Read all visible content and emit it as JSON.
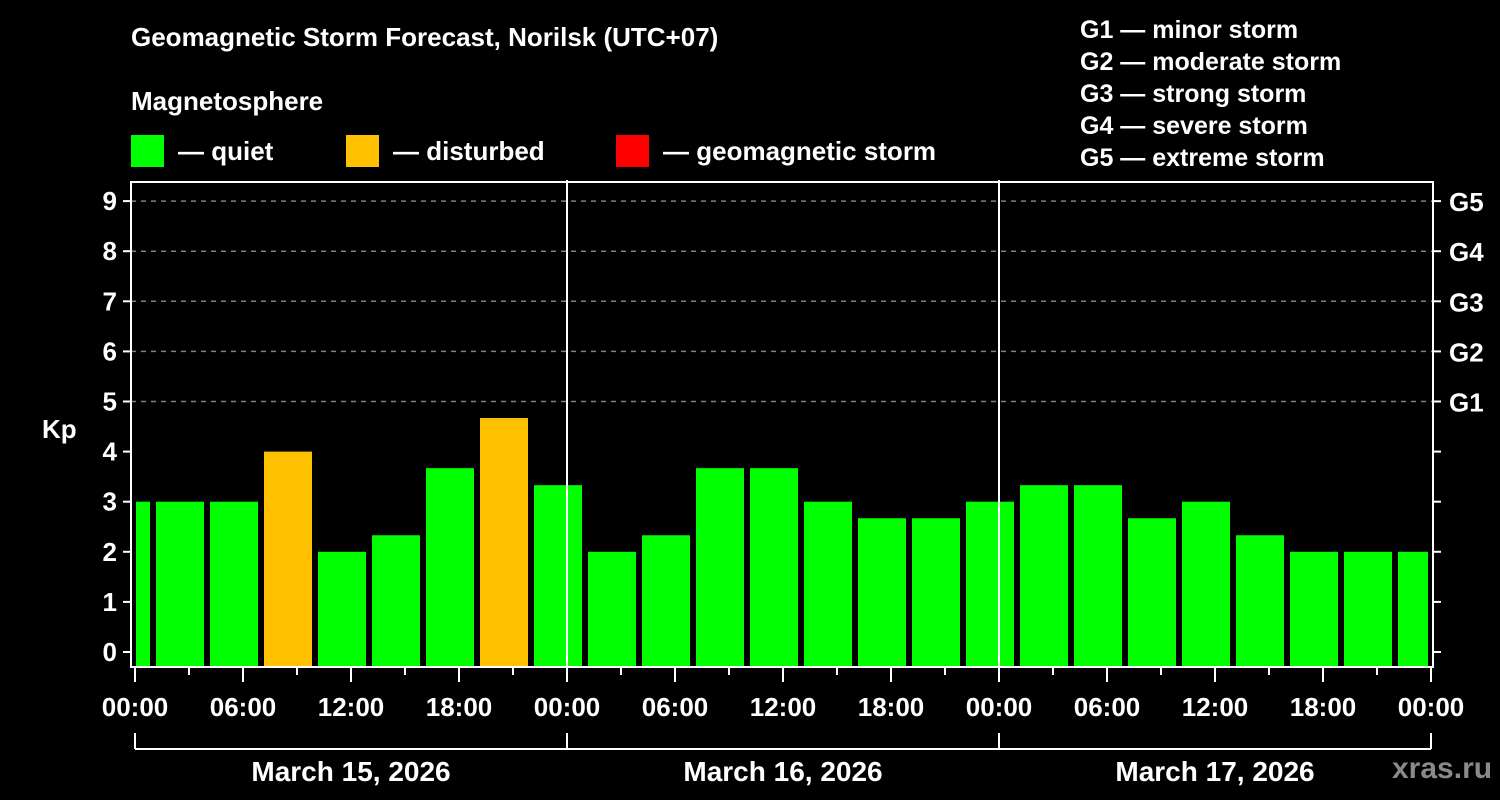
{
  "header": {
    "title": "Geomagnetic Storm Forecast, Norilsk (UTC+07)",
    "subtitle": "Magnetosphere"
  },
  "legend": [
    {
      "label": "— quiet",
      "color": "#00ff00"
    },
    {
      "label": "— disturbed",
      "color": "#ffc000"
    },
    {
      "label": "— geomagnetic storm",
      "color": "#ff0000"
    }
  ],
  "g_scale": [
    "G1 — minor storm",
    "G2 — moderate storm",
    "G3 — strong storm",
    "G4 — severe storm",
    "G5 — extreme storm"
  ],
  "watermark": "xras.ru",
  "colors": {
    "quiet": "#00ff00",
    "disturbed": "#ffc000",
    "storm": "#ff0000",
    "grid": "#808080",
    "axis": "#ffffff"
  },
  "chart_data": {
    "type": "bar",
    "title": "Geomagnetic Storm Forecast, Norilsk (UTC+07)",
    "xlabel": "",
    "ylabel": "Kp",
    "ylim": [
      0,
      9
    ],
    "yticks": [
      0,
      1,
      2,
      3,
      4,
      5,
      6,
      7,
      8,
      9
    ],
    "right_axis_labels": [
      {
        "kp": 5,
        "label": "G1"
      },
      {
        "kp": 6,
        "label": "G2"
      },
      {
        "kp": 7,
        "label": "G3"
      },
      {
        "kp": 8,
        "label": "G4"
      },
      {
        "kp": 9,
        "label": "G5"
      }
    ],
    "grid": "dashed horizontal at Kp 5-9",
    "x_tick_labels": [
      "00:00",
      "06:00",
      "12:00",
      "18:00",
      "00:00",
      "06:00",
      "12:00",
      "18:00",
      "00:00",
      "06:00",
      "12:00",
      "18:00",
      "00:00"
    ],
    "days": [
      "March 15, 2026",
      "March 16, 2026",
      "March 17, 2026"
    ],
    "interval_hours": 3,
    "bars": [
      {
        "start": "Mar 14 22:00",
        "kp": 3.0,
        "status": "quiet"
      },
      {
        "start": "Mar 15 01:00",
        "kp": 3.0,
        "status": "quiet"
      },
      {
        "start": "Mar 15 04:00",
        "kp": 3.0,
        "status": "quiet"
      },
      {
        "start": "Mar 15 07:00",
        "kp": 4.0,
        "status": "disturbed"
      },
      {
        "start": "Mar 15 10:00",
        "kp": 2.0,
        "status": "quiet"
      },
      {
        "start": "Mar 15 13:00",
        "kp": 2.33,
        "status": "quiet"
      },
      {
        "start": "Mar 15 16:00",
        "kp": 3.67,
        "status": "quiet"
      },
      {
        "start": "Mar 15 19:00",
        "kp": 4.67,
        "status": "disturbed"
      },
      {
        "start": "Mar 15 22:00",
        "kp": 3.33,
        "status": "quiet"
      },
      {
        "start": "Mar 16 01:00",
        "kp": 2.0,
        "status": "quiet"
      },
      {
        "start": "Mar 16 04:00",
        "kp": 2.33,
        "status": "quiet"
      },
      {
        "start": "Mar 16 07:00",
        "kp": 3.67,
        "status": "quiet"
      },
      {
        "start": "Mar 16 10:00",
        "kp": 3.67,
        "status": "quiet"
      },
      {
        "start": "Mar 16 13:00",
        "kp": 3.0,
        "status": "quiet"
      },
      {
        "start": "Mar 16 16:00",
        "kp": 2.67,
        "status": "quiet"
      },
      {
        "start": "Mar 16 19:00",
        "kp": 2.67,
        "status": "quiet"
      },
      {
        "start": "Mar 16 22:00",
        "kp": 3.0,
        "status": "quiet"
      },
      {
        "start": "Mar 17 01:00",
        "kp": 3.33,
        "status": "quiet"
      },
      {
        "start": "Mar 17 04:00",
        "kp": 3.33,
        "status": "quiet"
      },
      {
        "start": "Mar 17 07:00",
        "kp": 2.67,
        "status": "quiet"
      },
      {
        "start": "Mar 17 10:00",
        "kp": 3.0,
        "status": "quiet"
      },
      {
        "start": "Mar 17 13:00",
        "kp": 2.33,
        "status": "quiet"
      },
      {
        "start": "Mar 17 16:00",
        "kp": 2.0,
        "status": "quiet"
      },
      {
        "start": "Mar 17 19:00",
        "kp": 2.0,
        "status": "quiet"
      },
      {
        "start": "Mar 17 22:00",
        "kp": 2.0,
        "status": "quiet"
      }
    ]
  }
}
